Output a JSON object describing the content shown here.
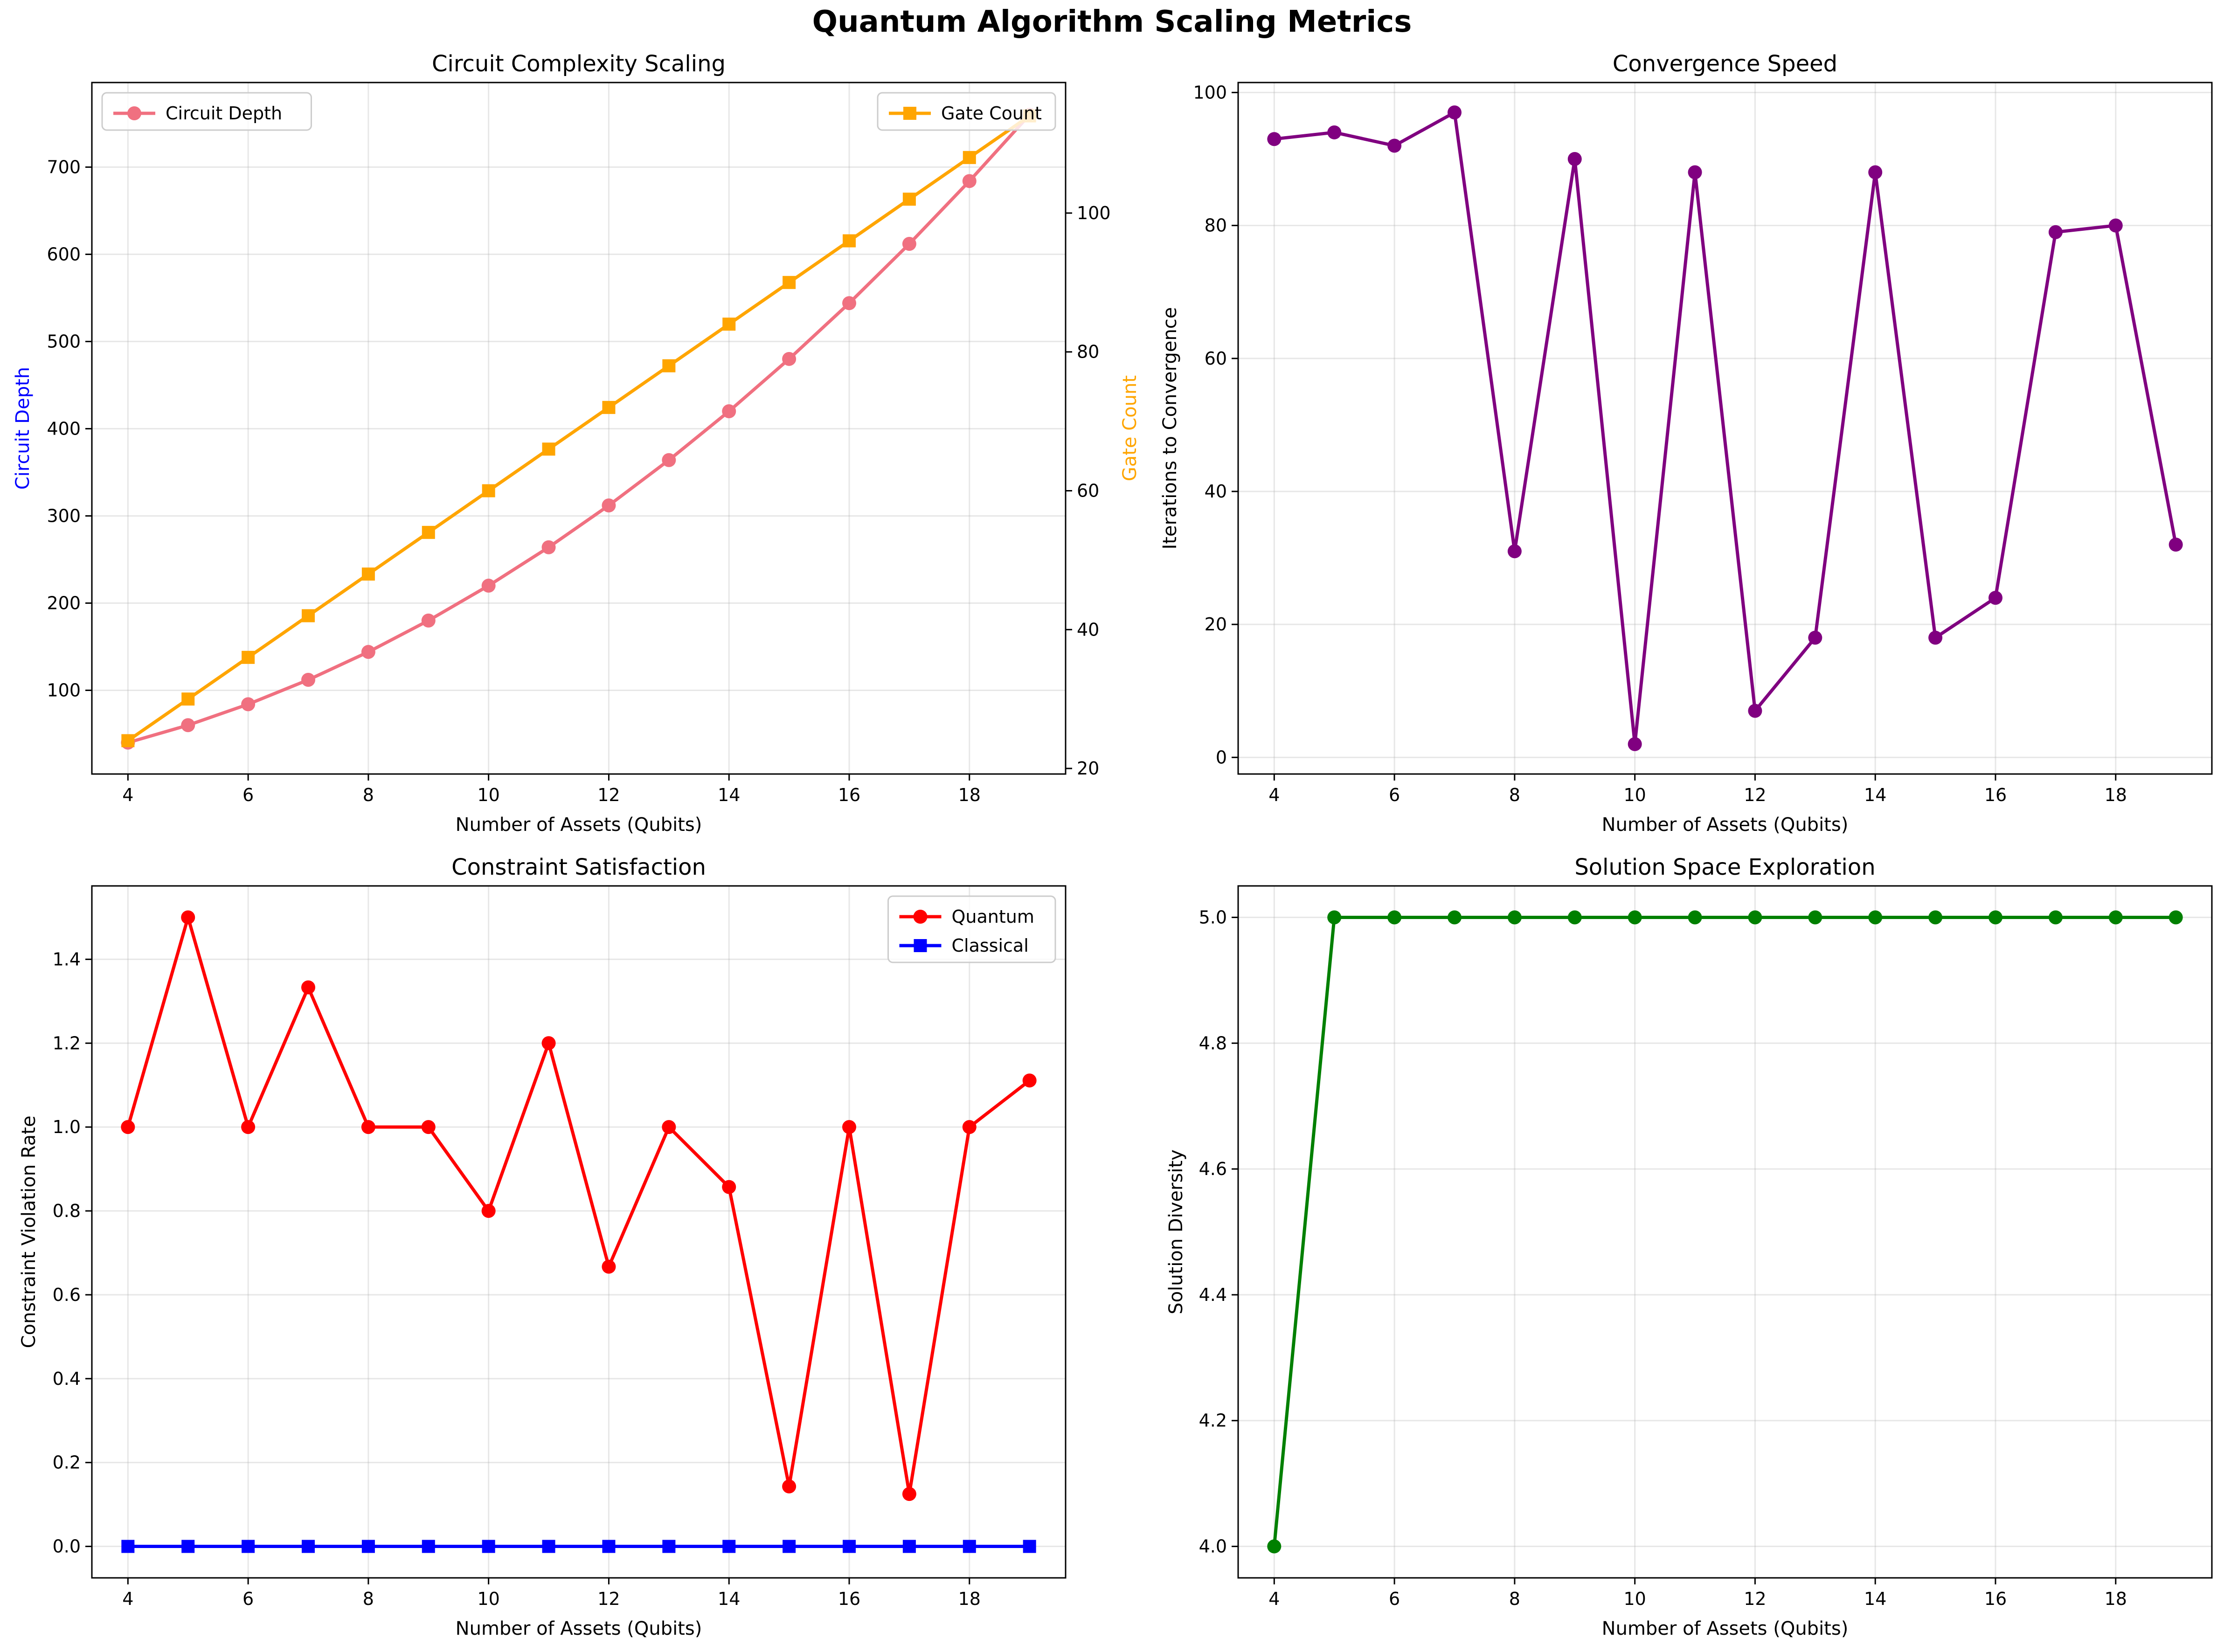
{
  "figure_title": "Quantum Algorithm Scaling Metrics",
  "chart_data": [
    {
      "type": "line",
      "title": "Circuit Complexity Scaling",
      "xlabel": "Number of Assets (Qubits)",
      "ylabel": "Circuit Depth",
      "y2label": "Gate Count",
      "xlim": [
        3.4,
        19.6
      ],
      "xticks": [
        4,
        6,
        8,
        10,
        12,
        14,
        16,
        18
      ],
      "ylim": [
        4,
        797
      ],
      "yticks": [
        100,
        200,
        300,
        400,
        500,
        600,
        700
      ],
      "y2lim": [
        19.2,
        118.8
      ],
      "y2ticks": [
        20,
        40,
        60,
        80,
        100
      ],
      "ylabel_color": "#0000ff",
      "y2label_color": "#ffa500",
      "grid": true,
      "x": [
        4,
        5,
        6,
        7,
        8,
        9,
        10,
        11,
        12,
        13,
        14,
        15,
        16,
        17,
        18,
        19
      ],
      "series": [
        {
          "name": "Circuit Depth",
          "axis": "left",
          "color": "#f07080",
          "marker": "circle",
          "values": [
            40,
            60,
            84,
            112,
            144,
            180,
            220,
            264,
            312,
            364,
            420,
            480,
            544,
            612,
            684,
            760
          ]
        },
        {
          "name": "Gate Count",
          "axis": "right",
          "color": "#ffa500",
          "marker": "square",
          "values": [
            24,
            30,
            36,
            42,
            48,
            54,
            60,
            66,
            72,
            78,
            84,
            90,
            96,
            102,
            108,
            114
          ]
        }
      ],
      "legends": [
        {
          "series": [
            0
          ],
          "position": "upper-left"
        },
        {
          "series": [
            1
          ],
          "position": "upper-right"
        }
      ]
    },
    {
      "type": "line",
      "title": "Convergence Speed",
      "xlabel": "Number of Assets (Qubits)",
      "ylabel": "Iterations to Convergence",
      "xlim": [
        3.4,
        19.6
      ],
      "xticks": [
        4,
        6,
        8,
        10,
        12,
        14,
        16,
        18
      ],
      "ylim": [
        -2.5,
        101.5
      ],
      "yticks": [
        0,
        20,
        40,
        60,
        80,
        100
      ],
      "grid": true,
      "x": [
        4,
        5,
        6,
        7,
        8,
        9,
        10,
        11,
        12,
        13,
        14,
        15,
        16,
        17,
        18,
        19
      ],
      "series": [
        {
          "color": "#800080",
          "marker": "circle",
          "values": [
            93,
            94,
            92,
            97,
            31,
            90,
            2,
            88,
            7,
            18,
            88,
            18,
            24,
            79,
            80,
            32
          ]
        }
      ]
    },
    {
      "type": "line",
      "title": "Constraint Satisfaction",
      "xlabel": "Number of Assets (Qubits)",
      "ylabel": "Constraint Violation Rate",
      "xlim": [
        3.4,
        19.6
      ],
      "xticks": [
        4,
        6,
        8,
        10,
        12,
        14,
        16,
        18
      ],
      "ylim": [
        -0.075,
        1.575
      ],
      "yticks": [
        0.0,
        0.2,
        0.4,
        0.6,
        0.8,
        1.0,
        1.2,
        1.4
      ],
      "ytick_labels": [
        "0.0",
        "0.2",
        "0.4",
        "0.6",
        "0.8",
        "1.0",
        "1.2",
        "1.4"
      ],
      "grid": true,
      "x": [
        4,
        5,
        6,
        7,
        8,
        9,
        10,
        11,
        12,
        13,
        14,
        15,
        16,
        17,
        18,
        19
      ],
      "series": [
        {
          "name": "Quantum",
          "color": "#ff0000",
          "marker": "circle",
          "values": [
            1.0,
            1.5,
            1.0,
            1.333,
            1.0,
            1.0,
            0.8,
            1.2,
            0.667,
            1.0,
            0.857,
            0.143,
            1.0,
            0.125,
            1.0,
            1.111
          ]
        },
        {
          "name": "Classical",
          "color": "#0000ff",
          "marker": "square",
          "values": [
            0,
            0,
            0,
            0,
            0,
            0,
            0,
            0,
            0,
            0,
            0,
            0,
            0,
            0,
            0,
            0
          ]
        }
      ],
      "legends": [
        {
          "series": [
            0,
            1
          ],
          "position": "upper-right"
        }
      ]
    },
    {
      "type": "line",
      "title": "Solution Space Exploration",
      "xlabel": "Number of Assets (Qubits)",
      "ylabel": "Solution Diversity",
      "xlim": [
        3.4,
        19.6
      ],
      "xticks": [
        4,
        6,
        8,
        10,
        12,
        14,
        16,
        18
      ],
      "ylim": [
        3.95,
        5.05
      ],
      "yticks": [
        4.0,
        4.2,
        4.4,
        4.6,
        4.8,
        5.0
      ],
      "ytick_labels": [
        "4.0",
        "4.2",
        "4.4",
        "4.6",
        "4.8",
        "5.0"
      ],
      "grid": true,
      "x": [
        4,
        5,
        6,
        7,
        8,
        9,
        10,
        11,
        12,
        13,
        14,
        15,
        16,
        17,
        18,
        19
      ],
      "series": [
        {
          "color": "#008000",
          "marker": "circle",
          "values": [
            4,
            5,
            5,
            5,
            5,
            5,
            5,
            5,
            5,
            5,
            5,
            5,
            5,
            5,
            5,
            5
          ]
        }
      ]
    }
  ]
}
